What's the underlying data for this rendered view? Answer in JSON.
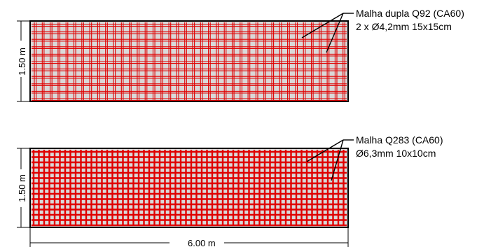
{
  "colors": {
    "background": "#ffffff",
    "slab_fill": "#d9d9d9",
    "rebar": "#e00000",
    "line": "#000000"
  },
  "panels": [
    {
      "label_line1": "Malha dupla Q92 (CA60)",
      "label_line2": "2 x Ø4,2mm 15x15cm",
      "height_dim": "1.50 m",
      "mesh": "double"
    },
    {
      "label_line1": "Malha Q283 (CA60)",
      "label_line2": "Ø6,3mm 10x10cm",
      "height_dim": "1.50 m",
      "mesh": "single"
    }
  ],
  "width_dim": "6.00 m"
}
